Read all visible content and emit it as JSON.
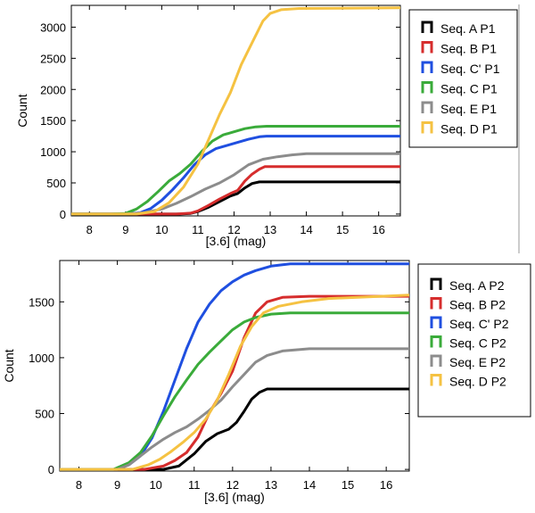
{
  "chart_data": [
    {
      "type": "line",
      "panel": "top",
      "xlabel": "[3.6] (mag)",
      "ylabel": "Count",
      "xlim": [
        7.5,
        16.6
      ],
      "ylim": [
        -30,
        3350
      ],
      "xticks": [
        "8",
        "9",
        "10",
        "11",
        "12",
        "13",
        "14",
        "15",
        "16"
      ],
      "yticks": [
        "0",
        "500",
        "1000",
        "1500",
        "2000",
        "2500",
        "3000"
      ],
      "legend_position": "right",
      "series": [
        {
          "name": "Seq. A P1",
          "color": "#000000",
          "x": [
            9.5,
            10.5,
            10.8,
            11.0,
            11.3,
            11.6,
            11.9,
            12.1,
            12.3,
            12.5,
            12.7,
            16.6
          ],
          "y": [
            0,
            0,
            10,
            40,
            110,
            200,
            290,
            330,
            420,
            490,
            515,
            515
          ]
        },
        {
          "name": "Seq. B P1",
          "color": "#d62d2d",
          "x": [
            9.5,
            10.4,
            10.8,
            11.0,
            11.3,
            11.6,
            11.9,
            12.1,
            12.3,
            12.5,
            12.7,
            12.85,
            16.6
          ],
          "y": [
            0,
            0,
            15,
            50,
            140,
            240,
            330,
            380,
            530,
            640,
            720,
            760,
            760
          ]
        },
        {
          "name": "Seq. C' P1",
          "color": "#1f4fe0",
          "x": [
            9.0,
            9.4,
            9.7,
            10.0,
            10.3,
            10.6,
            10.9,
            11.2,
            11.5,
            11.8,
            12.1,
            12.4,
            12.7,
            12.9,
            16.6
          ],
          "y": [
            0,
            20,
            90,
            220,
            390,
            580,
            790,
            950,
            1050,
            1100,
            1150,
            1200,
            1240,
            1250,
            1250
          ]
        },
        {
          "name": "Seq. C P1",
          "color": "#3aab3a",
          "x": [
            8.6,
            9.0,
            9.3,
            9.6,
            9.9,
            10.2,
            10.5,
            10.8,
            11.1,
            11.4,
            11.7,
            12.0,
            12.3,
            12.6,
            12.9,
            16.6
          ],
          "y": [
            0,
            10,
            80,
            200,
            360,
            530,
            650,
            800,
            1000,
            1170,
            1270,
            1320,
            1370,
            1400,
            1410,
            1410
          ]
        },
        {
          "name": "Seq. E P1",
          "color": "#8c8c8c",
          "x": [
            9.0,
            9.5,
            10.0,
            10.4,
            10.8,
            11.2,
            11.6,
            12.0,
            12.4,
            12.8,
            13.2,
            13.6,
            14.0,
            16.6
          ],
          "y": [
            0,
            20,
            80,
            170,
            280,
            400,
            500,
            630,
            790,
            880,
            920,
            950,
            970,
            970
          ]
        },
        {
          "name": "Seq. D P1",
          "color": "#f5c242",
          "x": [
            9.3,
            9.8,
            10.2,
            10.6,
            11.0,
            11.3,
            11.6,
            11.9,
            12.2,
            12.5,
            12.8,
            13.0,
            13.3,
            13.8,
            16.6
          ],
          "y": [
            0,
            40,
            180,
            430,
            800,
            1200,
            1600,
            1950,
            2400,
            2750,
            3100,
            3220,
            3280,
            3300,
            3310
          ]
        }
      ]
    },
    {
      "type": "line",
      "panel": "bottom",
      "xlabel": "[3.6] (mag)",
      "ylabel": "Count",
      "xlim": [
        7.5,
        16.6
      ],
      "ylim": [
        -15,
        1870
      ],
      "xticks": [
        "8",
        "9",
        "10",
        "11",
        "12",
        "13",
        "14",
        "15",
        "16"
      ],
      "yticks": [
        "0",
        "500",
        "1000",
        "1500"
      ],
      "legend_position": "right",
      "series": [
        {
          "name": "Seq. A P2",
          "color": "#000000",
          "x": [
            9.5,
            10.2,
            10.6,
            11.0,
            11.3,
            11.6,
            11.9,
            12.1,
            12.3,
            12.5,
            12.7,
            12.9,
            16.6
          ],
          "y": [
            0,
            0,
            30,
            140,
            250,
            320,
            360,
            420,
            520,
            630,
            690,
            720,
            720
          ]
        },
        {
          "name": "Seq. B P2",
          "color": "#d62d2d",
          "x": [
            9.7,
            10.2,
            10.5,
            10.8,
            11.1,
            11.4,
            11.7,
            12.0,
            12.3,
            12.6,
            12.9,
            13.3,
            14.0,
            16.6
          ],
          "y": [
            0,
            30,
            80,
            150,
            290,
            510,
            680,
            880,
            1180,
            1400,
            1500,
            1540,
            1550,
            1550
          ]
        },
        {
          "name": "Seq. C' P2",
          "color": "#1f4fe0",
          "x": [
            8.9,
            9.3,
            9.6,
            9.9,
            10.2,
            10.5,
            10.8,
            11.1,
            11.4,
            11.7,
            12.0,
            12.3,
            12.6,
            13.0,
            13.5,
            16.6
          ],
          "y": [
            0,
            40,
            120,
            280,
            520,
            800,
            1080,
            1320,
            1480,
            1600,
            1680,
            1740,
            1780,
            1820,
            1840,
            1840
          ]
        },
        {
          "name": "Seq. C P2",
          "color": "#3aab3a",
          "x": [
            8.9,
            9.3,
            9.6,
            9.9,
            10.2,
            10.5,
            10.8,
            11.1,
            11.4,
            11.7,
            12.0,
            12.3,
            12.6,
            13.0,
            13.5,
            16.6
          ],
          "y": [
            0,
            60,
            150,
            300,
            480,
            650,
            800,
            940,
            1050,
            1150,
            1250,
            1320,
            1360,
            1390,
            1400,
            1400
          ]
        },
        {
          "name": "Seq. E P2",
          "color": "#8c8c8c",
          "x": [
            9.0,
            9.3,
            9.6,
            9.9,
            10.2,
            10.5,
            10.8,
            11.1,
            11.4,
            11.7,
            12.0,
            12.3,
            12.6,
            12.9,
            13.3,
            14.0,
            16.6
          ],
          "y": [
            0,
            40,
            120,
            200,
            270,
            330,
            380,
            450,
            530,
            620,
            740,
            850,
            960,
            1020,
            1060,
            1080,
            1080
          ]
        },
        {
          "name": "Seq. D P2",
          "color": "#f5c242",
          "x": [
            9.4,
            9.8,
            10.1,
            10.4,
            10.7,
            11.0,
            11.3,
            11.6,
            11.9,
            12.2,
            12.5,
            12.8,
            13.2,
            13.8,
            14.5,
            16.6
          ],
          "y": [
            0,
            40,
            90,
            160,
            240,
            330,
            450,
            620,
            850,
            1100,
            1280,
            1400,
            1460,
            1500,
            1530,
            1560
          ]
        }
      ]
    }
  ]
}
